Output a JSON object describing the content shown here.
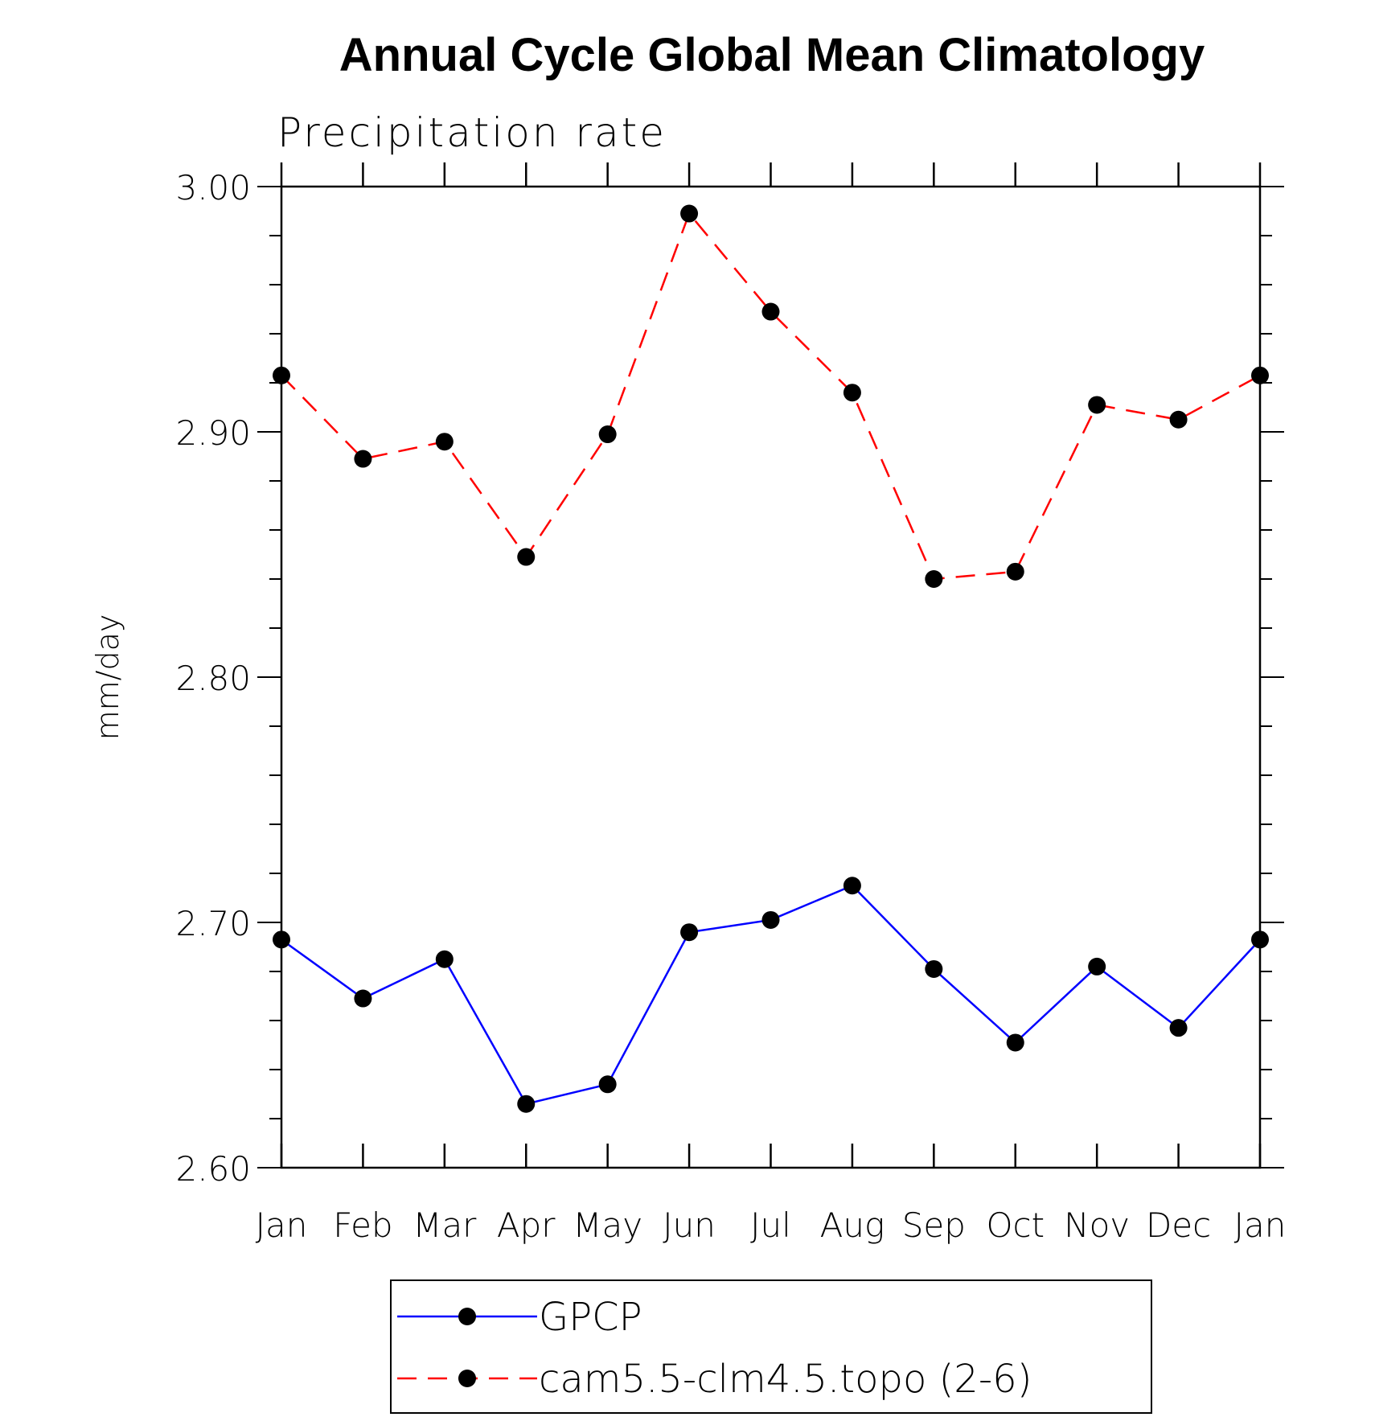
{
  "chart_data": {
    "type": "line",
    "title": "Annual Cycle Global Mean Climatology",
    "subtitle": "Precipitation rate",
    "xlabel": "",
    "ylabel": "mm/day",
    "categories": [
      "Jan",
      "Feb",
      "Mar",
      "Apr",
      "May",
      "Jun",
      "Jul",
      "Aug",
      "Sep",
      "Oct",
      "Nov",
      "Dec",
      "Jan"
    ],
    "ylim": [
      2.6,
      3.0
    ],
    "yticks": [
      "2.60",
      "2.70",
      "2.80",
      "2.90",
      "3.00"
    ],
    "grid": false,
    "legend_position": "bottom-center",
    "series": [
      {
        "name": "GPCP",
        "color": "#0000ff",
        "dash": "solid",
        "marker": "filled-circle",
        "values": [
          2.693,
          2.669,
          2.685,
          2.626,
          2.634,
          2.696,
          2.701,
          2.715,
          2.681,
          2.651,
          2.682,
          2.657,
          2.693
        ]
      },
      {
        "name": "cam5.5-clm4.5.topo (2-6)",
        "color": "#ff0000",
        "dash": "dashed",
        "marker": "filled-circle",
        "values": [
          2.923,
          2.889,
          2.896,
          2.849,
          2.899,
          2.989,
          2.949,
          2.916,
          2.84,
          2.843,
          2.911,
          2.905,
          2.923
        ]
      }
    ]
  }
}
